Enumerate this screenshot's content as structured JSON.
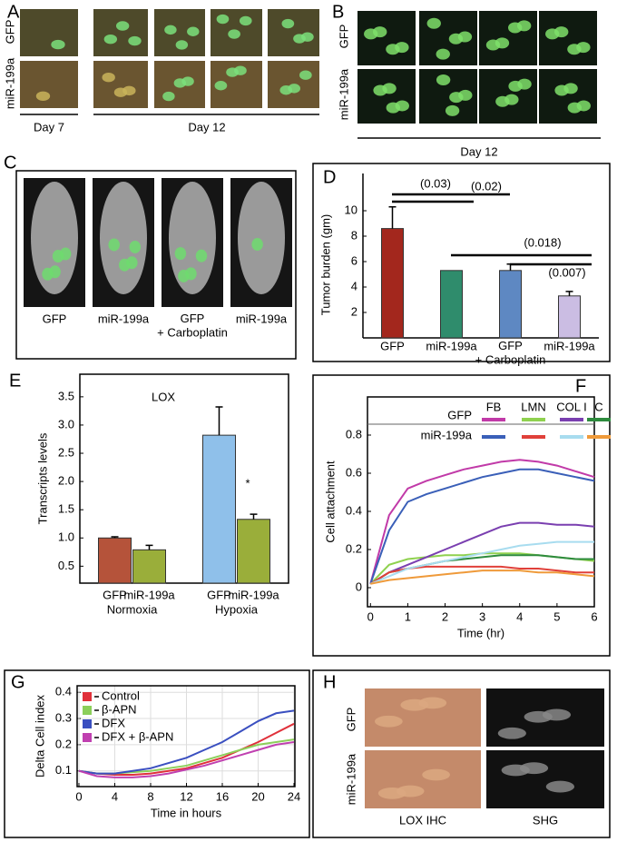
{
  "panels": {
    "A": {
      "label": "A",
      "rows": [
        "GFP",
        "miR-199a"
      ],
      "days": [
        "Day 7",
        "Day 12"
      ]
    },
    "B": {
      "label": "B",
      "rows": [
        "GFP",
        "miR-199a"
      ],
      "day": "Day 12"
    },
    "C": {
      "label": "C",
      "captions": [
        "GFP",
        "miR-199a",
        "GFP\n+ Carboplatin",
        "miR-199a"
      ]
    },
    "H": {
      "label": "H",
      "rows": [
        "GFP",
        "miR-199a"
      ],
      "columns": [
        "LOX IHC",
        "SHG"
      ]
    }
  },
  "chart_data": [
    {
      "type": "bar",
      "panel_label": "D",
      "ylabel": "Tumor burden (gm)",
      "categories": [
        "GFP",
        "miR-199a",
        "GFP\n+ Carboplatin",
        "miR-199a"
      ],
      "values": [
        8.6,
        5.3,
        5.3,
        3.3
      ],
      "errors": [
        1.7,
        0,
        0.5,
        0.35
      ],
      "colors": [
        "#a3271d",
        "#2f8c6c",
        "#5e88c2",
        "#cbbde3"
      ],
      "ylim": [
        0,
        11.5
      ],
      "yticks": [
        2,
        4,
        6,
        8,
        10
      ],
      "annotations": [
        "(0.03)",
        "(0.02)",
        "(0.018)",
        "(0.007)"
      ]
    },
    {
      "type": "grouped_bar",
      "panel_label": "E",
      "ylabel": "Transcripts levels",
      "categories": [
        "Normoxia",
        "Hypoxia"
      ],
      "series": [
        {
          "name": "GFP",
          "colors": [
            "#b5533a",
            "#8fc0ea"
          ],
          "values": [
            1.0,
            2.82
          ],
          "errors": [
            0.02,
            0.5
          ]
        },
        {
          "name": "miR-199a",
          "color": "#9aae3a",
          "values": [
            0.79,
            1.33
          ],
          "errors": [
            0.08,
            0.09
          ]
        }
      ],
      "ylim": [
        0.2,
        3.9
      ],
      "yticks": [
        0.5,
        {
          "value": 1,
          "label": "1.0"
        },
        1.5,
        {
          "value": 2,
          "label": "2.0"
        },
        2.5,
        {
          "value": 3,
          "label": "3.0"
        },
        3.5
      ],
      "annotations": [
        "LOX",
        "*"
      ]
    },
    {
      "type": "line",
      "panel_label": "F",
      "xlabel": "Time (hr)",
      "ylabel": "Cell attachment",
      "legend": {
        "rows": [
          "GFP",
          "miR-199a"
        ],
        "columns": [
          "FB",
          "LMN",
          "COL I",
          "C"
        ]
      },
      "x": [
        0,
        0.5,
        1,
        1.5,
        2,
        2.5,
        3,
        3.5,
        4,
        4.5,
        5,
        5.5,
        6
      ],
      "series": [
        {
          "color": "#c13aa8",
          "values": [
            0.02,
            0.38,
            0.52,
            0.56,
            0.59,
            0.62,
            0.64,
            0.66,
            0.67,
            0.66,
            0.64,
            0.61,
            0.58
          ]
        },
        {
          "color": "#8fd14f",
          "values": [
            0.02,
            0.12,
            0.15,
            0.16,
            0.17,
            0.17,
            0.18,
            0.18,
            0.18,
            0.17,
            0.16,
            0.15,
            0.14
          ]
        },
        {
          "color": "#7a3fb0",
          "values": [
            0.02,
            0.08,
            0.12,
            0.16,
            0.2,
            0.24,
            0.28,
            0.32,
            0.34,
            0.34,
            0.33,
            0.33,
            0.32
          ]
        },
        {
          "color": "#2e8b3e",
          "values": [
            0.02,
            0.08,
            0.1,
            0.12,
            0.14,
            0.15,
            0.16,
            0.17,
            0.17,
            0.17,
            0.16,
            0.15,
            0.15
          ]
        },
        {
          "color": "#3a5fb8",
          "values": [
            0.02,
            0.3,
            0.45,
            0.49,
            0.52,
            0.55,
            0.58,
            0.6,
            0.62,
            0.62,
            0.6,
            0.58,
            0.56
          ]
        },
        {
          "color": "#e0403a",
          "values": [
            0.02,
            0.08,
            0.1,
            0.11,
            0.11,
            0.11,
            0.11,
            0.11,
            0.1,
            0.1,
            0.09,
            0.08,
            0.08
          ]
        },
        {
          "color": "#a8dcef",
          "values": [
            0.02,
            0.06,
            0.1,
            0.12,
            0.14,
            0.16,
            0.18,
            0.2,
            0.22,
            0.23,
            0.24,
            0.24,
            0.24
          ]
        },
        {
          "color": "#ef9a3a",
          "values": [
            0.02,
            0.04,
            0.05,
            0.06,
            0.07,
            0.08,
            0.09,
            0.09,
            0.09,
            0.08,
            0.08,
            0.07,
            0.06
          ]
        }
      ],
      "xlim": [
        -0.08,
        6
      ],
      "xticks": [
        0,
        1,
        2,
        3,
        4,
        5,
        6
      ],
      "ylim": [
        -0.1,
        1.0
      ],
      "yticks": [
        0,
        0.2,
        0.4,
        0.6,
        0.8
      ]
    },
    {
      "type": "line",
      "panel_label": "G",
      "xlabel": "Time in hours",
      "ylabel": "Delta Cell index",
      "legend_position": "upper left",
      "grid": true,
      "x": [
        0,
        2,
        4,
        6,
        8,
        10,
        12,
        14,
        16,
        18,
        20,
        22,
        24
      ],
      "series": [
        {
          "name": "Control",
          "color": "#e0303a",
          "values": [
            0.1,
            0.09,
            0.085,
            0.085,
            0.09,
            0.1,
            0.11,
            0.13,
            0.15,
            0.18,
            0.21,
            0.245,
            0.28
          ]
        },
        {
          "name": "β-APN",
          "color": "#8ccf5a",
          "values": [
            0.1,
            0.09,
            0.09,
            0.095,
            0.1,
            0.11,
            0.12,
            0.14,
            0.16,
            0.18,
            0.2,
            0.21,
            0.22
          ]
        },
        {
          "name": "DFX",
          "color": "#3a4fc0",
          "values": [
            0.1,
            0.09,
            0.09,
            0.1,
            0.11,
            0.13,
            0.15,
            0.18,
            0.21,
            0.25,
            0.29,
            0.32,
            0.33
          ]
        },
        {
          "name": "DFX + β-APN",
          "color": "#c040b0",
          "values": [
            0.1,
            0.08,
            0.075,
            0.075,
            0.08,
            0.09,
            0.105,
            0.12,
            0.14,
            0.16,
            0.18,
            0.2,
            0.21
          ]
        }
      ],
      "xlim": [
        -0.2,
        24.1
      ],
      "xticks": [
        0,
        4,
        8,
        12,
        16,
        20,
        24
      ],
      "ylim": [
        0.04,
        0.425
      ],
      "yticks": [
        0.1,
        0.2,
        0.3,
        0.4
      ]
    }
  ]
}
